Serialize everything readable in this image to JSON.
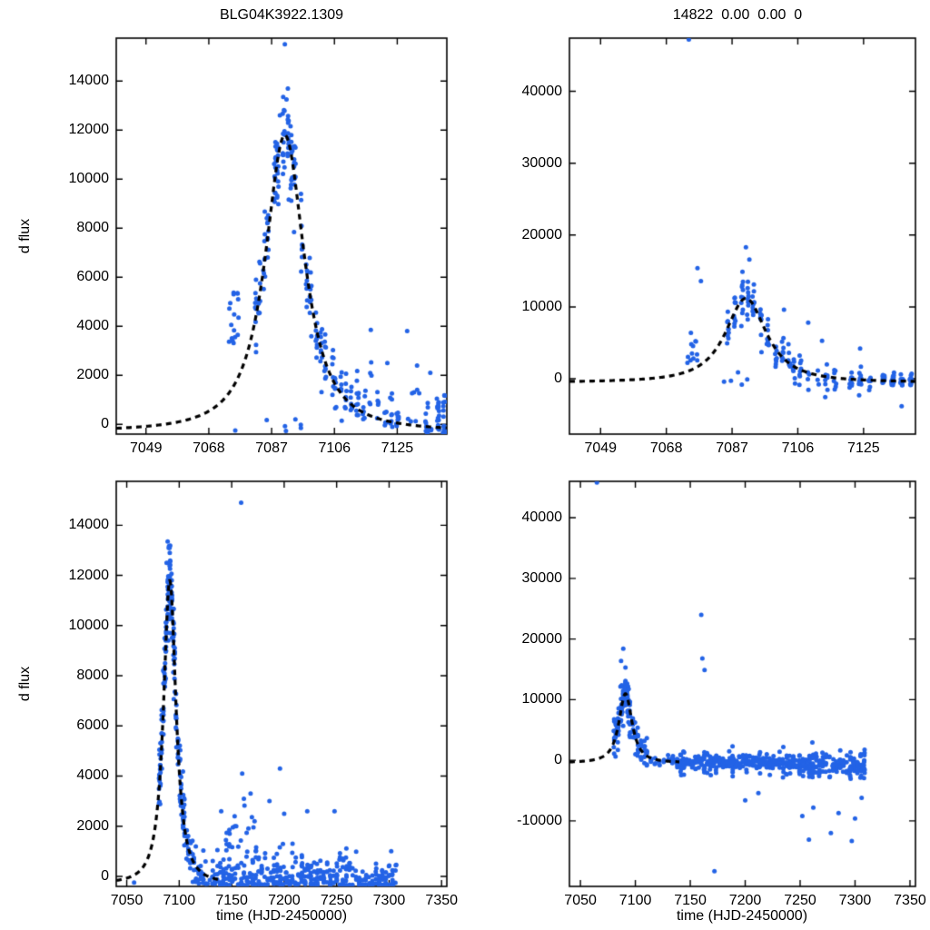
{
  "chart_data": {
    "type": "scatter",
    "description": "Four-panel microlensing light curve: difference flux vs time with dashed model fit; left column zoomed time range, right column larger flux range; bottom row full season",
    "titles": {
      "left": "BLG04K3922.1309",
      "right": "14822  0.00  0.00  0"
    },
    "ylabel": "d flux",
    "xlabel": "time (HJD-2450000)",
    "point_color": "#2363e6",
    "curve_color": "#000000",
    "panels": [
      {
        "id": "top-left",
        "pos": "tl",
        "xlim": [
          7040,
          7140
        ],
        "ylim": [
          -400,
          15750
        ],
        "xticks": [
          7049,
          7068,
          7087,
          7106,
          7125
        ],
        "yticks": [
          0,
          2000,
          4000,
          6000,
          8000,
          10000,
          12000,
          14000
        ],
        "model": {
          "t0": 7091,
          "w": 8,
          "p": 1.2,
          "peak": 12100,
          "base": -300
        },
        "curve_end": 7140,
        "clusters": [
          {
            "type": "flat",
            "x0": 7074,
            "x1": 7077,
            "n": 16,
            "y0": 3100,
            "y1": 5400
          },
          {
            "type": "nights",
            "x0": 7081.5,
            "x1": 7086.5,
            "nights": 4,
            "per": 9,
            "sigma": 800
          },
          {
            "type": "nights",
            "x0": 7087,
            "x1": 7095,
            "nights": 6,
            "per": 13,
            "sigma": 1000
          },
          {
            "type": "nights",
            "x0": 7095.5,
            "x1": 7104,
            "nights": 6,
            "per": 9,
            "sigma": 700
          },
          {
            "type": "nights",
            "x0": 7104.5,
            "x1": 7112,
            "nights": 5,
            "per": 7,
            "sigma": 450
          },
          {
            "type": "flat",
            "x0": 7112,
            "x1": 7120,
            "n": 28,
            "y0": 200,
            "y1": 2700,
            "cols": 4
          },
          {
            "type": "flat",
            "x0": 7120.5,
            "x1": 7126,
            "n": 22,
            "y0": -150,
            "y1": 1600,
            "cols": 3
          },
          {
            "type": "flat",
            "x0": 7127,
            "x1": 7132,
            "n": 7,
            "y0": 100,
            "y1": 1500
          },
          {
            "type": "flat",
            "x0": 7133,
            "x1": 7140,
            "n": 48,
            "y0": -350,
            "y1": 1800,
            "cols": 4,
            "bias": true
          },
          {
            "type": "flat",
            "x0": 7084,
            "x1": 7096,
            "n": 6,
            "y0": -300,
            "y1": 300
          }
        ],
        "outliers": [
          [
            7091,
            15500
          ],
          [
            7090.5,
            13350
          ],
          [
            7091.5,
            13250
          ],
          [
            7089.5,
            12600
          ],
          [
            7092,
            12300
          ],
          [
            7117,
            3850
          ],
          [
            7128,
            3800
          ],
          [
            7131,
            2400
          ],
          [
            7122,
            2500
          ],
          [
            7135,
            2100
          ],
          [
            7075.5,
            5300
          ],
          [
            7076,
            -250
          ]
        ]
      },
      {
        "id": "top-right",
        "pos": "tr",
        "xlim": [
          7040,
          7140
        ],
        "ylim": [
          -7700,
          47400
        ],
        "xticks": [
          7049,
          7068,
          7087,
          7106,
          7125
        ],
        "yticks": [
          0,
          10000,
          20000,
          30000,
          40000
        ],
        "model": {
          "t0": 7091,
          "w": 8,
          "p": 1.2,
          "peak": 11700,
          "base": -500
        },
        "curve_end": 7140,
        "clusters": [
          {
            "type": "flat",
            "x0": 7074,
            "x1": 7077,
            "n": 12,
            "y0": 2200,
            "y1": 6500
          },
          {
            "type": "nights",
            "x0": 7085,
            "x1": 7096,
            "nights": 6,
            "per": 10,
            "sigma": 1700
          },
          {
            "type": "nights",
            "x0": 7096.5,
            "x1": 7108,
            "nights": 6,
            "per": 8,
            "sigma": 1400
          },
          {
            "type": "noise",
            "x0": 7108,
            "x1": 7118,
            "n": 22,
            "mu": 300,
            "sigma": 1300,
            "cols": 4
          },
          {
            "type": "noise",
            "x0": 7120,
            "x1": 7128,
            "n": 30,
            "mu": -100,
            "sigma": 1100,
            "cols": 3
          },
          {
            "type": "noise",
            "x0": 7129.5,
            "x1": 7140,
            "n": 55,
            "mu": -200,
            "sigma": 1200,
            "cols": 4
          },
          {
            "type": "flat",
            "x0": 7082,
            "x1": 7095,
            "n": 5,
            "y0": -900,
            "y1": 900
          }
        ],
        "outliers": [
          [
            7074.5,
            47200
          ],
          [
            7077,
            15400
          ],
          [
            7078,
            13600
          ],
          [
            7091,
            18300
          ],
          [
            7092,
            16600
          ],
          [
            7090,
            14900
          ],
          [
            7109,
            7800
          ],
          [
            7113,
            5300
          ],
          [
            7102,
            9600
          ],
          [
            7124,
            4200
          ],
          [
            7136,
            -3800
          ]
        ]
      },
      {
        "id": "bottom-left",
        "pos": "bl",
        "xlim": [
          7040,
          7355
        ],
        "ylim": [
          -400,
          15750
        ],
        "xticks": [
          7050,
          7100,
          7150,
          7200,
          7250,
          7300,
          7350
        ],
        "yticks": [
          0,
          2000,
          4000,
          6000,
          8000,
          10000,
          12000,
          14000
        ],
        "model": {
          "t0": 7091,
          "w": 8,
          "p": 1.2,
          "peak": 12100,
          "base": -300
        },
        "curve_end": 7140,
        "clusters": [
          {
            "type": "nights",
            "x0": 7080,
            "x1": 7087,
            "nights": 5,
            "per": 10,
            "sigma": 900
          },
          {
            "type": "nights",
            "x0": 7087,
            "x1": 7095,
            "nights": 6,
            "per": 14,
            "sigma": 900
          },
          {
            "type": "nights",
            "x0": 7095,
            "x1": 7106,
            "nights": 7,
            "per": 9,
            "sigma": 600
          },
          {
            "type": "nights",
            "x0": 7106,
            "x1": 7115,
            "nights": 5,
            "per": 6,
            "sigma": 400
          },
          {
            "type": "flat",
            "x0": 7115,
            "x1": 7135,
            "n": 35,
            "y0": -300,
            "y1": 1700,
            "cols": 9,
            "bias": true
          },
          {
            "type": "flat",
            "x0": 7135,
            "x1": 7180,
            "n": 110,
            "y0": -350,
            "y1": 2200,
            "cols": 16,
            "bias": true
          },
          {
            "type": "flat",
            "x0": 7180,
            "x1": 7230,
            "n": 120,
            "y0": -350,
            "y1": 1500,
            "cols": 17,
            "bias": true
          },
          {
            "type": "flat",
            "x0": 7230,
            "x1": 7270,
            "n": 85,
            "y0": -350,
            "y1": 1300,
            "cols": 13,
            "bias": true
          },
          {
            "type": "flat",
            "x0": 7270,
            "x1": 7308,
            "n": 70,
            "y0": -350,
            "y1": 900,
            "cols": 12,
            "bias": true
          },
          {
            "type": "flat",
            "x0": 7150,
            "x1": 7175,
            "n": 10,
            "y0": 1800,
            "y1": 3200
          }
        ],
        "outliers": [
          [
            7057,
            -250
          ],
          [
            7159,
            14900
          ],
          [
            7160,
            4100
          ],
          [
            7196,
            4300
          ],
          [
            7200,
            2500
          ],
          [
            7222,
            2600
          ],
          [
            7248,
            2600
          ],
          [
            7186,
            3000
          ],
          [
            7168,
            3300
          ],
          [
            7140,
            2600
          ],
          [
            7302,
            1000
          ],
          [
            7089,
            13350
          ],
          [
            7090,
            13100
          ],
          [
            7091,
            12900
          ],
          [
            7088,
            12500
          ]
        ]
      },
      {
        "id": "bottom-right",
        "pos": "br",
        "xlim": [
          7040,
          7355
        ],
        "ylim": [
          -20800,
          46000
        ],
        "xticks": [
          7050,
          7100,
          7150,
          7200,
          7250,
          7300,
          7350
        ],
        "yticks": [
          -10000,
          0,
          10000,
          20000,
          30000,
          40000
        ],
        "model": {
          "t0": 7091,
          "w": 8,
          "p": 1.2,
          "peak": 11400,
          "base": -400
        },
        "curve_end": 7140,
        "clusters": [
          {
            "type": "nights",
            "x0": 7080,
            "x1": 7087,
            "nights": 5,
            "per": 8,
            "sigma": 1500
          },
          {
            "type": "nights",
            "x0": 7087,
            "x1": 7096,
            "nights": 6,
            "per": 11,
            "sigma": 1700
          },
          {
            "type": "nights",
            "x0": 7096,
            "x1": 7112,
            "nights": 6,
            "per": 8,
            "sigma": 1100
          },
          {
            "type": "noise",
            "x0": 7112,
            "x1": 7140,
            "n": 35,
            "mu": -100,
            "sigma": 800,
            "cols": 7
          },
          {
            "type": "noise",
            "x0": 7140,
            "x1": 7175,
            "n": 110,
            "mu": -300,
            "sigma": 1200,
            "cols": 13
          },
          {
            "type": "noise",
            "x0": 7175,
            "x1": 7230,
            "n": 160,
            "mu": -400,
            "sigma": 1300,
            "cols": 18
          },
          {
            "type": "noise",
            "x0": 7230,
            "x1": 7272,
            "n": 140,
            "mu": -600,
            "sigma": 1500,
            "cols": 14
          },
          {
            "type": "noise",
            "x0": 7272,
            "x1": 7310,
            "n": 110,
            "mu": -900,
            "sigma": 1500,
            "cols": 12
          }
        ],
        "outliers": [
          [
            7065,
            45800
          ],
          [
            7160,
            24000
          ],
          [
            7161,
            16800
          ],
          [
            7163,
            14900
          ],
          [
            7089,
            18400
          ],
          [
            7087,
            16400
          ],
          [
            7091,
            15300
          ],
          [
            7172,
            -18300
          ],
          [
            7200,
            -6600
          ],
          [
            7212,
            -5400
          ],
          [
            7252,
            -9200
          ],
          [
            7258,
            -13100
          ],
          [
            7262,
            -7800
          ],
          [
            7297,
            -13300
          ],
          [
            7300,
            -9600
          ],
          [
            7306,
            -6200
          ],
          [
            7285,
            -8700
          ],
          [
            7278,
            -12000
          ]
        ]
      }
    ]
  }
}
